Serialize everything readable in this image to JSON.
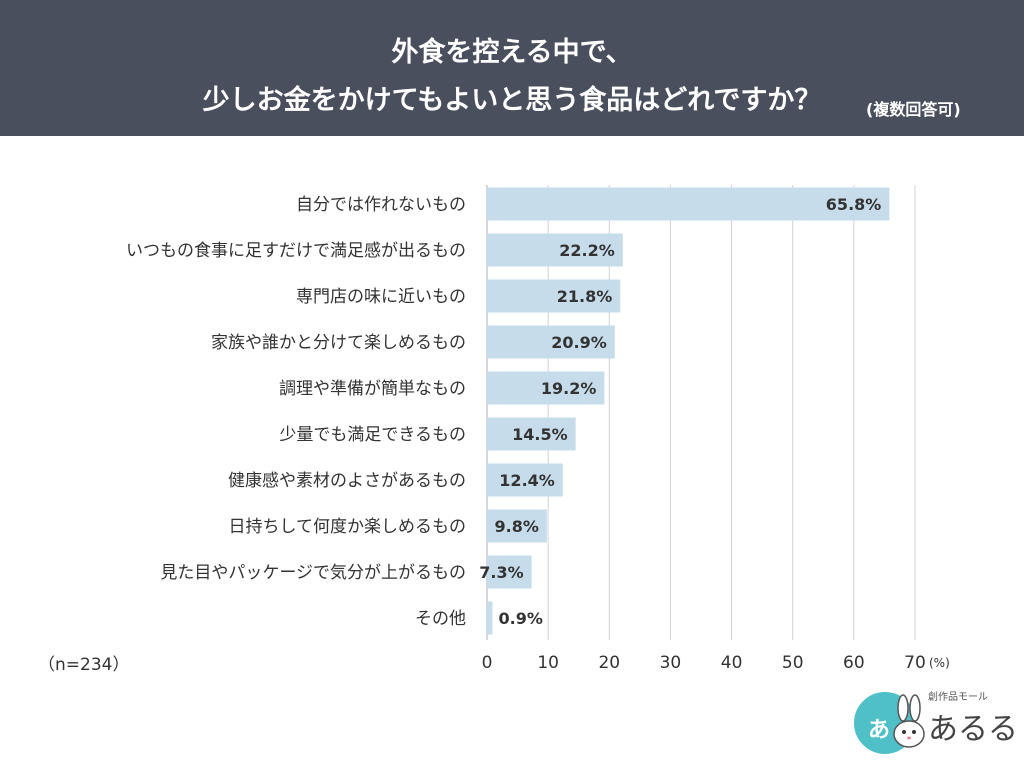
{
  "header": {
    "title_line1": "外食を控える中で、",
    "title_line2": "少しお金をかけてもよいと思う食品はどれですか？",
    "note": "(複数回答可)"
  },
  "sample_size": "（n=234）",
  "logo": {
    "small_text": "創作品モール",
    "big_text": "あるる",
    "circle_text": "あ"
  },
  "colors": {
    "header_bg": "#4a4f5e",
    "bar": "#c6dceb",
    "grid": "#cfd3d8",
    "text": "#333333"
  },
  "chart_data": {
    "type": "bar",
    "orientation": "horizontal",
    "categories": [
      "自分では作れないもの",
      "いつもの食事に足すだけで満足感が出るもの",
      "専門店の味に近いもの",
      "家族や誰かと分けて楽しめるもの",
      "調理や準備が簡単なもの",
      "少量でも満足できるもの",
      "健康感や素材のよさがあるもの",
      "日持ちして何度か楽しめるもの",
      "見た目やパッケージで気分が上がるもの",
      "その他"
    ],
    "values": [
      65.8,
      22.2,
      21.8,
      20.9,
      19.2,
      14.5,
      12.4,
      9.8,
      7.3,
      0.9
    ],
    "value_labels": [
      "65.8%",
      "22.2%",
      "21.8%",
      "20.9%",
      "19.2%",
      "14.5%",
      "12.4%",
      "9.8%",
      "7.3%",
      "0.9%"
    ],
    "xlim": [
      0,
      70
    ],
    "xticks": [
      "0",
      "10",
      "20",
      "30",
      "40",
      "50",
      "60",
      "70"
    ],
    "unit": "(%)",
    "grid": true
  }
}
